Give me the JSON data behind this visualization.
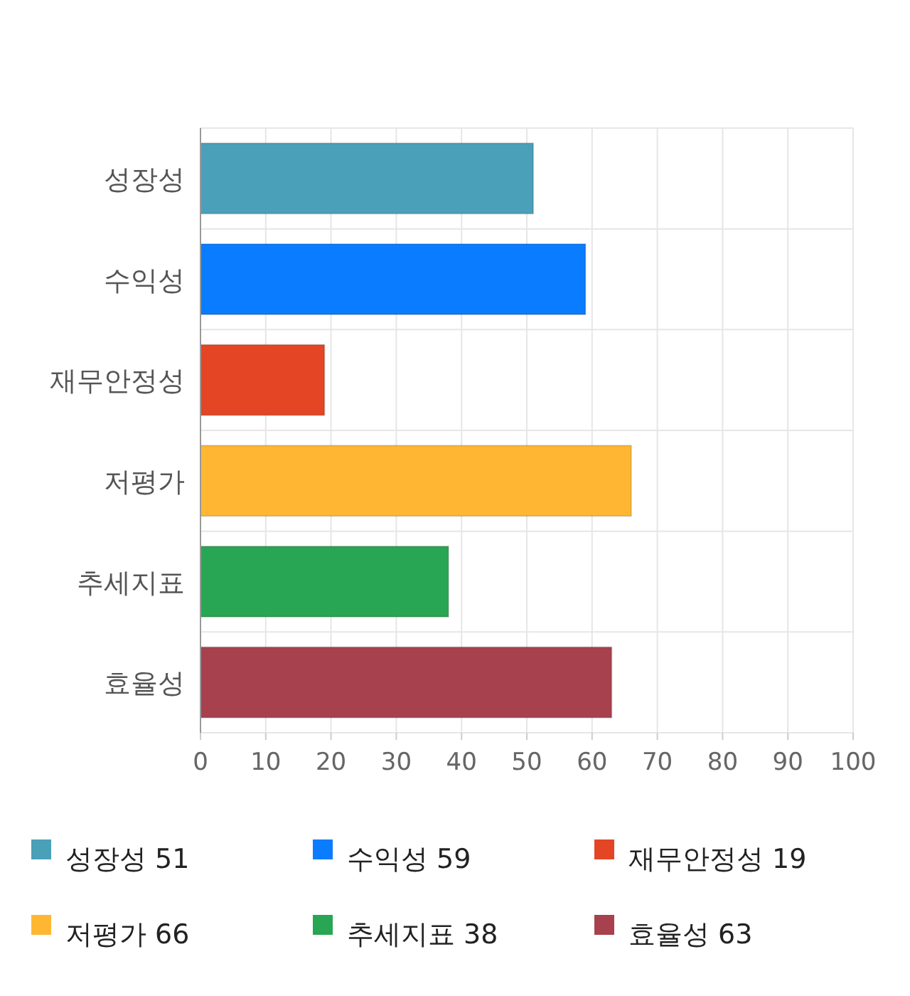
{
  "chart_data": {
    "type": "bar",
    "orientation": "horizontal",
    "categories": [
      "성장성",
      "수익성",
      "재무안정성",
      "저평가",
      "추세지표",
      "효율성"
    ],
    "series": [
      {
        "name": "성장성 51",
        "color": "#4aa0b9",
        "values": [
          51,
          null,
          null,
          null,
          null,
          null
        ]
      },
      {
        "name": "수익성 59",
        "color": "#0a7cff",
        "values": [
          null,
          59,
          null,
          null,
          null,
          null
        ]
      },
      {
        "name": "재무안정성 19",
        "color": "#e34525",
        "values": [
          null,
          null,
          19,
          null,
          null,
          null
        ]
      },
      {
        "name": "저평가 66",
        "color": "#ffb733",
        "values": [
          null,
          null,
          null,
          66,
          null,
          null
        ]
      },
      {
        "name": "추세지표 38",
        "color": "#28a653",
        "values": [
          null,
          null,
          null,
          null,
          38,
          null
        ]
      },
      {
        "name": "효율성 63",
        "color": "#a6414d",
        "values": [
          null,
          null,
          null,
          null,
          null,
          63
        ]
      }
    ],
    "xlim": [
      0,
      100
    ],
    "xticks": [
      0,
      10,
      20,
      30,
      40,
      50,
      60,
      70,
      80,
      90,
      100
    ],
    "grid": true,
    "legend": "bottom"
  }
}
